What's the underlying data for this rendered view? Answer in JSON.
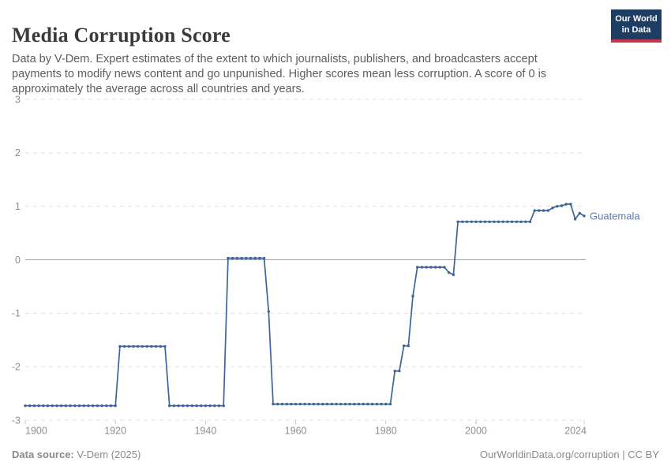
{
  "header": {
    "title": "Media Corruption Score",
    "subtitle": "Data by V-Dem. Expert estimates of the extent to which journalists, publishers, and broadcasters accept payments to modify news content and go unpunished. Higher scores mean less corruption. A score of 0 is approximately the average across all countries and years.",
    "logo": {
      "line1": "Our World",
      "line2": "in Data"
    }
  },
  "chart_data": {
    "type": "line",
    "title": "Media Corruption Score",
    "xlabel": "",
    "ylabel": "",
    "xlim": [
      1900,
      2024
    ],
    "ylim": [
      -3,
      3
    ],
    "x_ticks": [
      1900,
      1920,
      1940,
      1960,
      1980,
      2000,
      2024
    ],
    "y_ticks": [
      3,
      2,
      1,
      0,
      -1,
      -2,
      -3
    ],
    "grid": "horizontal dashed gridlines, solid zero line",
    "legend_position": "label at end of line",
    "series": [
      {
        "name": "Guatemala",
        "color": "#3d6499",
        "points": [
          [
            1900,
            -2.73
          ],
          [
            1901,
            -2.73
          ],
          [
            1902,
            -2.73
          ],
          [
            1903,
            -2.73
          ],
          [
            1904,
            -2.73
          ],
          [
            1905,
            -2.73
          ],
          [
            1906,
            -2.73
          ],
          [
            1907,
            -2.73
          ],
          [
            1908,
            -2.73
          ],
          [
            1909,
            -2.73
          ],
          [
            1910,
            -2.73
          ],
          [
            1911,
            -2.73
          ],
          [
            1912,
            -2.73
          ],
          [
            1913,
            -2.73
          ],
          [
            1914,
            -2.73
          ],
          [
            1915,
            -2.73
          ],
          [
            1916,
            -2.73
          ],
          [
            1917,
            -2.73
          ],
          [
            1918,
            -2.73
          ],
          [
            1919,
            -2.73
          ],
          [
            1920,
            -2.73
          ],
          [
            1921,
            -1.62
          ],
          [
            1922,
            -1.62
          ],
          [
            1923,
            -1.62
          ],
          [
            1924,
            -1.62
          ],
          [
            1925,
            -1.62
          ],
          [
            1926,
            -1.62
          ],
          [
            1927,
            -1.62
          ],
          [
            1928,
            -1.62
          ],
          [
            1929,
            -1.62
          ],
          [
            1930,
            -1.62
          ],
          [
            1931,
            -1.62
          ],
          [
            1932,
            -2.73
          ],
          [
            1933,
            -2.73
          ],
          [
            1934,
            -2.73
          ],
          [
            1935,
            -2.73
          ],
          [
            1936,
            -2.73
          ],
          [
            1937,
            -2.73
          ],
          [
            1938,
            -2.73
          ],
          [
            1939,
            -2.73
          ],
          [
            1940,
            -2.73
          ],
          [
            1941,
            -2.73
          ],
          [
            1942,
            -2.73
          ],
          [
            1943,
            -2.73
          ],
          [
            1944,
            -2.73
          ],
          [
            1945,
            0.03
          ],
          [
            1946,
            0.03
          ],
          [
            1947,
            0.03
          ],
          [
            1948,
            0.03
          ],
          [
            1949,
            0.03
          ],
          [
            1950,
            0.03
          ],
          [
            1951,
            0.03
          ],
          [
            1952,
            0.03
          ],
          [
            1953,
            0.03
          ],
          [
            1954,
            -0.97
          ],
          [
            1955,
            -2.7
          ],
          [
            1956,
            -2.7
          ],
          [
            1957,
            -2.7
          ],
          [
            1958,
            -2.7
          ],
          [
            1959,
            -2.7
          ],
          [
            1960,
            -2.7
          ],
          [
            1961,
            -2.7
          ],
          [
            1962,
            -2.7
          ],
          [
            1963,
            -2.7
          ],
          [
            1964,
            -2.7
          ],
          [
            1965,
            -2.7
          ],
          [
            1966,
            -2.7
          ],
          [
            1967,
            -2.7
          ],
          [
            1968,
            -2.7
          ],
          [
            1969,
            -2.7
          ],
          [
            1970,
            -2.7
          ],
          [
            1971,
            -2.7
          ],
          [
            1972,
            -2.7
          ],
          [
            1973,
            -2.7
          ],
          [
            1974,
            -2.7
          ],
          [
            1975,
            -2.7
          ],
          [
            1976,
            -2.7
          ],
          [
            1977,
            -2.7
          ],
          [
            1978,
            -2.7
          ],
          [
            1979,
            -2.7
          ],
          [
            1980,
            -2.7
          ],
          [
            1981,
            -2.7
          ],
          [
            1982,
            -2.08
          ],
          [
            1983,
            -2.08
          ],
          [
            1984,
            -1.61
          ],
          [
            1985,
            -1.61
          ],
          [
            1986,
            -0.68
          ],
          [
            1987,
            -0.14
          ],
          [
            1988,
            -0.14
          ],
          [
            1989,
            -0.14
          ],
          [
            1990,
            -0.14
          ],
          [
            1991,
            -0.14
          ],
          [
            1992,
            -0.14
          ],
          [
            1993,
            -0.14
          ],
          [
            1994,
            -0.24
          ],
          [
            1995,
            -0.28
          ],
          [
            1996,
            0.71
          ],
          [
            1997,
            0.71
          ],
          [
            1998,
            0.71
          ],
          [
            1999,
            0.71
          ],
          [
            2000,
            0.71
          ],
          [
            2001,
            0.71
          ],
          [
            2002,
            0.71
          ],
          [
            2003,
            0.71
          ],
          [
            2004,
            0.71
          ],
          [
            2005,
            0.71
          ],
          [
            2006,
            0.71
          ],
          [
            2007,
            0.71
          ],
          [
            2008,
            0.71
          ],
          [
            2009,
            0.71
          ],
          [
            2010,
            0.71
          ],
          [
            2011,
            0.71
          ],
          [
            2012,
            0.71
          ],
          [
            2013,
            0.92
          ],
          [
            2014,
            0.92
          ],
          [
            2015,
            0.92
          ],
          [
            2016,
            0.92
          ],
          [
            2017,
            0.97
          ],
          [
            2018,
            1.0
          ],
          [
            2019,
            1.01
          ],
          [
            2020,
            1.04
          ],
          [
            2021,
            1.04
          ],
          [
            2022,
            0.76
          ],
          [
            2023,
            0.87
          ],
          [
            2024,
            0.82
          ]
        ]
      }
    ]
  },
  "colors": {
    "title_text": "#3a3a3a",
    "subtitle_text": "#5d5d5d",
    "footer_text": "#8a8a8a",
    "logo_bg": "#1d3d63",
    "logo_bar": "#c9364a",
    "series": "#3d6499",
    "series_label": "#5b7ca8",
    "grid_line": "#e0e0e0",
    "zero_line": "#a0a0a0",
    "axis_text": "#8e8e8e",
    "tick_mark": "#c9c9c9"
  },
  "footer": {
    "source_label": "Data source:",
    "source_value": " V-Dem (2025)",
    "credit": "OurWorldinData.org/corruption | CC BY"
  }
}
